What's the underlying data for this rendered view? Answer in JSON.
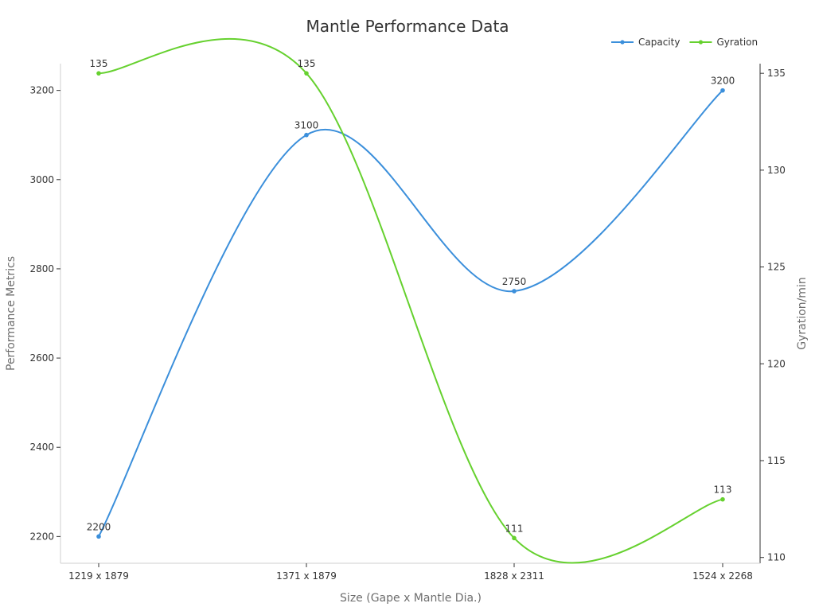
{
  "chart_data": {
    "type": "line",
    "title": "Mantle Performance Data",
    "xlabel": "Size (Gape x Mantle Dia.)",
    "ylabel": "Performance Metrics",
    "y2label": "Gyration/min",
    "categories": [
      "1219 x 1879",
      "1371 x 1879",
      "1828 x 2311",
      "1524 x 2268"
    ],
    "ylim": [
      2140,
      3260
    ],
    "y2lim": [
      109.7,
      135.5
    ],
    "yticks": [
      2200,
      2400,
      2600,
      2800,
      3000,
      3200
    ],
    "y2ticks": [
      110,
      115,
      120,
      125,
      130,
      135
    ],
    "legend_position": "top-right",
    "grid": false,
    "smooth": true,
    "series": [
      {
        "name": "Capacity",
        "axis": "left",
        "color": "#3b8fdb",
        "values": [
          2200,
          3100,
          2750,
          3200
        ]
      },
      {
        "name": "Gyration",
        "axis": "right",
        "color": "#66d12f",
        "values": [
          135,
          135,
          111,
          113
        ]
      }
    ]
  }
}
